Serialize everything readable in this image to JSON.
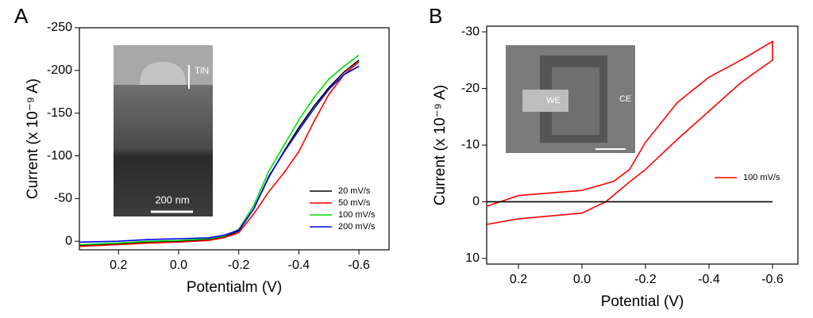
{
  "chart_data": [
    {
      "type": "line",
      "panel": "A",
      "xlabel": "Potentialm (V)",
      "ylabel": "Current (x 10⁻⁹ A)",
      "xlim": [
        0.33,
        -0.7
      ],
      "ylim": [
        10,
        -250
      ],
      "xticks": [
        0.2,
        {
          "value": 0,
          "label": "0.0"
        },
        -0.2,
        -0.4,
        -0.6
      ],
      "yticks": [
        -250,
        -200,
        -150,
        -100,
        -50,
        0
      ],
      "x": [
        0.33,
        0.2,
        0.1,
        0.0,
        -0.1,
        -0.15,
        -0.2,
        -0.25,
        -0.3,
        -0.35,
        -0.4,
        -0.45,
        -0.5,
        -0.55,
        -0.6
      ],
      "series": [
        {
          "name": "20 mV/s",
          "color": "#000000",
          "values": [
            5,
            3,
            1,
            0,
            -2,
            -5,
            -12,
            -38,
            -75,
            -105,
            -133,
            -158,
            -180,
            -198,
            -212
          ]
        },
        {
          "name": "50 mV/s",
          "color": "#ff0000",
          "values": [
            6,
            4,
            2,
            1,
            -1,
            -4,
            -10,
            -32,
            -58,
            -80,
            -105,
            -140,
            -172,
            -195,
            -210
          ]
        },
        {
          "name": "100 mV/s",
          "color": "#00e000",
          "values": [
            4,
            2,
            0,
            -1,
            -3,
            -6,
            -14,
            -42,
            -82,
            -112,
            -142,
            -168,
            -190,
            -205,
            -218
          ]
        },
        {
          "name": "200 mV/s",
          "color": "#0000ff",
          "values": [
            1,
            0,
            -2,
            -3,
            -4,
            -7,
            -13,
            -38,
            -76,
            -104,
            -130,
            -155,
            -178,
            -195,
            -205
          ]
        }
      ],
      "legend": "lower right",
      "inset_labels": [
        "TiN",
        "200 nm"
      ]
    },
    {
      "type": "line",
      "panel": "B",
      "xlabel": "Potential (V)",
      "ylabel": "Current (x 10⁻⁹ A)",
      "xlim": [
        0.3,
        -0.68
      ],
      "ylim": [
        11,
        -31
      ],
      "xticks": [
        0.2,
        {
          "value": 0,
          "label": "0.0"
        },
        -0.2,
        -0.4,
        -0.6
      ],
      "yticks": [
        -30,
        -20,
        -10,
        0,
        10
      ],
      "series": [
        {
          "name": "100 mV/s",
          "color": "#ff0000",
          "x": [
            0.3,
            0.2,
            0.1,
            0.0,
            -0.075,
            -0.15,
            -0.2,
            -0.3,
            -0.4,
            -0.5,
            -0.6,
            -0.6,
            -0.5,
            -0.4,
            -0.3,
            -0.2,
            -0.15,
            -0.1,
            0.0,
            0.2,
            0.3
          ],
          "values": [
            4,
            3,
            2.5,
            2,
            0,
            -3.5,
            -5.7,
            -11,
            -16,
            -21,
            -25,
            -28.3,
            -25,
            -22,
            -17.5,
            -10.5,
            -5.7,
            -3.6,
            -2,
            -1.1,
            0.8
          ]
        },
        {
          "color": "#000000",
          "x": [
            0.3,
            -0.6
          ],
          "values": [
            0,
            0
          ]
        }
      ],
      "legend": "right",
      "inset_labels": [
        "WE",
        "CE"
      ]
    }
  ]
}
